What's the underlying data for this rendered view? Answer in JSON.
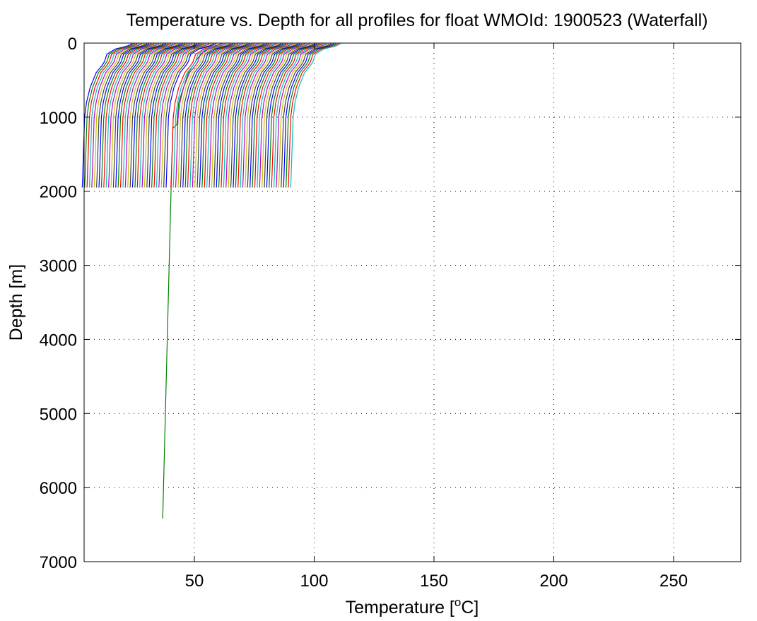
{
  "chart_data": {
    "type": "line",
    "title": "Temperature vs. Depth for all profiles for float WMOId: 1900523 (Waterfall)",
    "xlabel": {
      "prefix": "Temperature [",
      "superscript": "o",
      "suffix": "C]"
    },
    "ylabel": "Depth [m]",
    "xlim": [
      4,
      278
    ],
    "ylim": [
      0,
      7000
    ],
    "y_reversed": true,
    "grid": true,
    "grid_style": "dotted",
    "xticks": [
      50,
      100,
      150,
      200,
      250
    ],
    "yticks": [
      0,
      1000,
      2000,
      3000,
      4000,
      5000,
      6000,
      7000
    ],
    "waterfall": {
      "profile_count": 88,
      "offset_per_profile": 1,
      "series_colors": [
        "#0000ff",
        "#008000",
        "#ff0000",
        "#00bfbf",
        "#bf00bf",
        "#bfbf00",
        "#404040"
      ],
      "base_profile": {
        "depth": [
          0,
          10,
          40,
          80,
          150,
          250,
          300,
          400,
          600,
          800,
          1000,
          1400,
          1800,
          1950
        ],
        "temperature": [
          24,
          24,
          22,
          17,
          13.5,
          12.5,
          11.5,
          9,
          6.5,
          5,
          4.2,
          3.8,
          3.4,
          3.2
        ]
      },
      "outlier_profile": {
        "index": 36,
        "depth": [
          0,
          10,
          80,
          200,
          400,
          800,
          1100,
          1150,
          1200,
          1950,
          6420
        ],
        "temperature": [
          61.5,
          61,
          55,
          51.5,
          47.5,
          43.5,
          42.7,
          41,
          41,
          40.3,
          36.8
        ]
      }
    }
  }
}
